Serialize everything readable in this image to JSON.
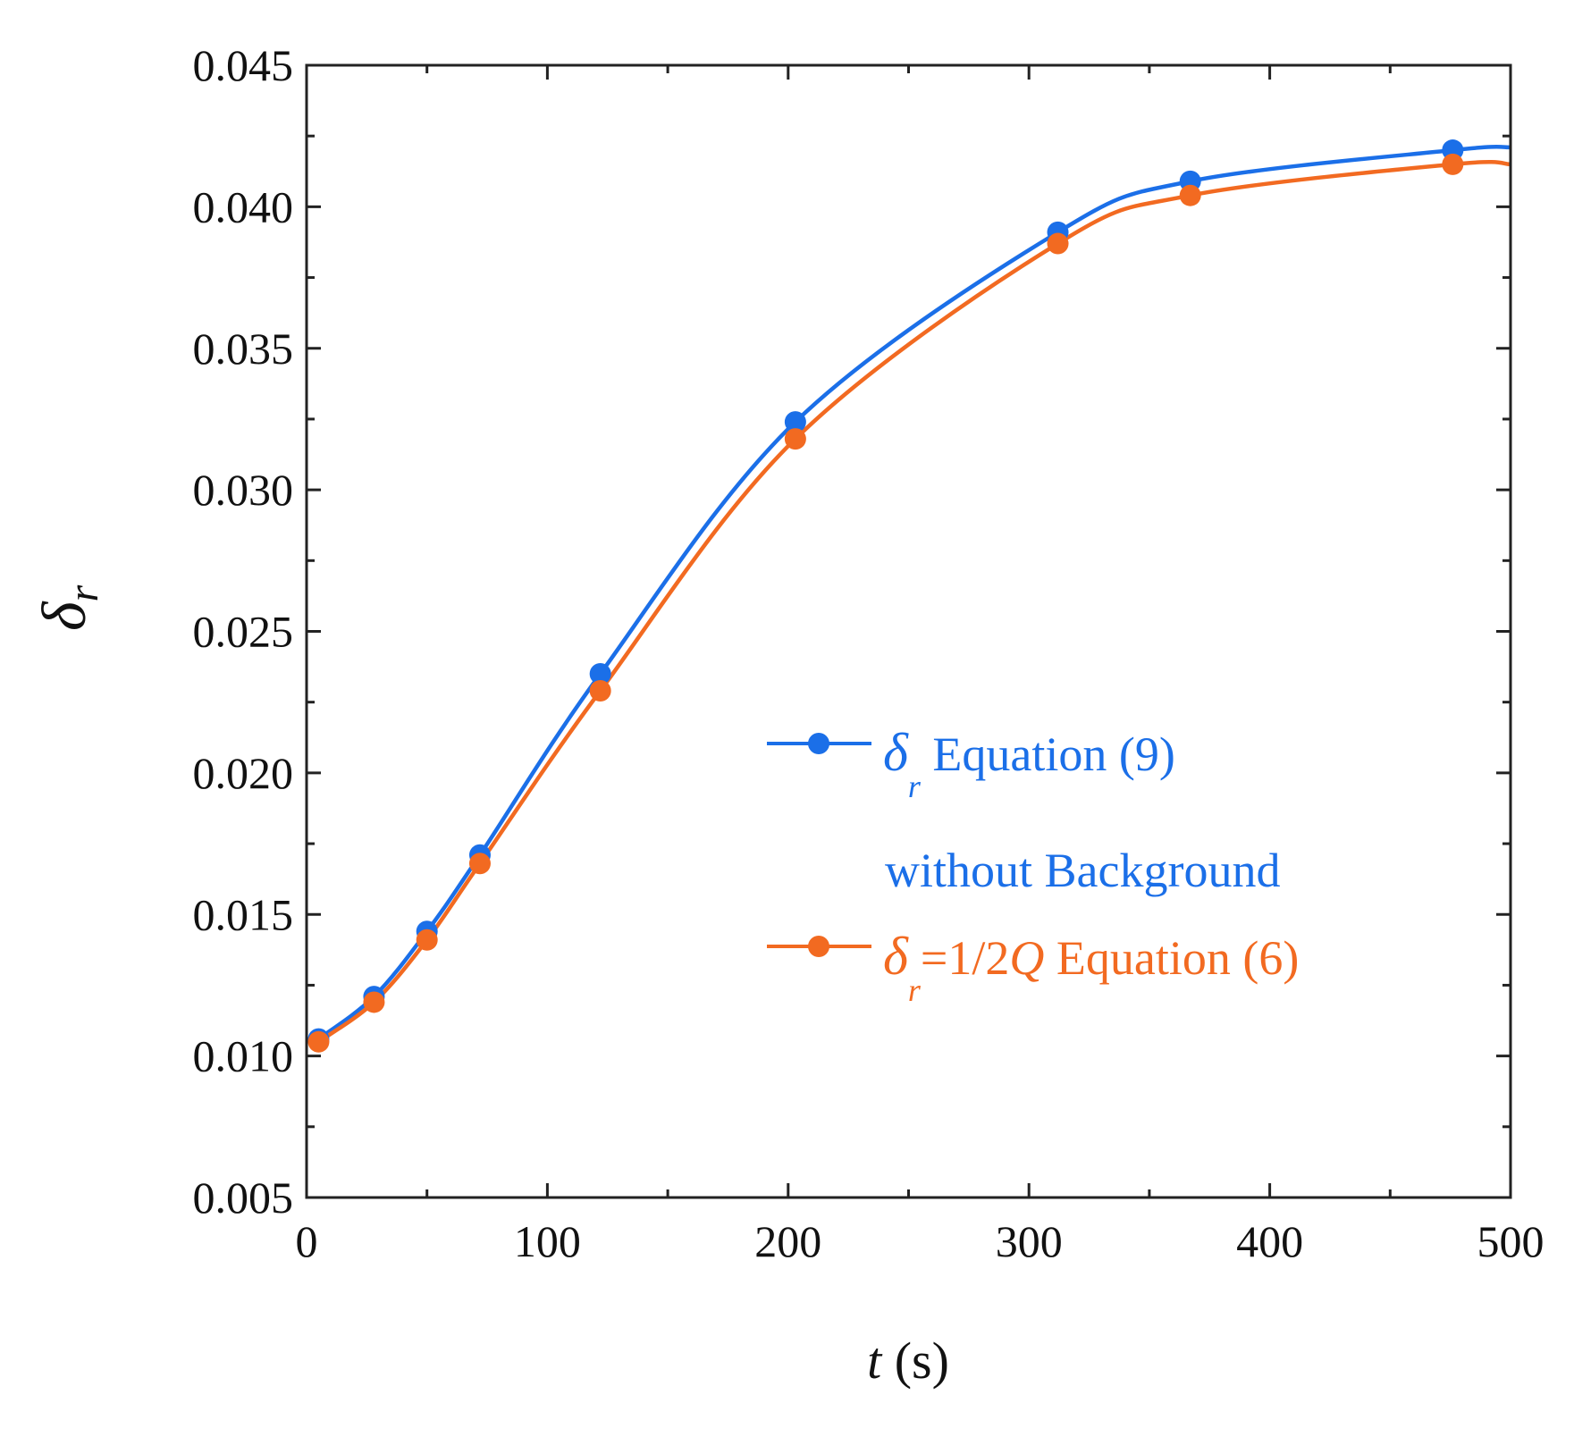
{
  "chart_data": {
    "type": "line",
    "title": "",
    "xlabel": {
      "var": "t",
      "unit": " (s)"
    },
    "ylabel": {
      "symbol": "δ",
      "sub": "r"
    },
    "xlim": [
      0,
      500
    ],
    "ylim": [
      0.005,
      0.045
    ],
    "xticks": [
      0,
      100,
      200,
      300,
      400,
      500
    ],
    "xtick_labels": [
      "0",
      "100",
      "200",
      "300",
      "400",
      "500"
    ],
    "yticks": [
      0.005,
      0.01,
      0.015,
      0.02,
      0.025,
      0.03,
      0.035,
      0.04,
      0.045
    ],
    "ytick_labels": [
      "0.005",
      "0.010",
      "0.015",
      "0.020",
      "0.025",
      "0.030",
      "0.035",
      "0.040",
      "0.045"
    ],
    "grid": false,
    "legend_position": "center-right",
    "series": [
      {
        "name": "δr Equation (9) without Background",
        "color": "#1b6fe8",
        "legend": {
          "symbol": "δ",
          "sub": "r",
          "rest": " Equation (9)",
          "line2": "without Background"
        },
        "points": [
          [
            5,
            0.0106
          ],
          [
            28,
            0.0121
          ],
          [
            50,
            0.0144
          ],
          [
            72,
            0.0171
          ],
          [
            122,
            0.0235
          ],
          [
            203,
            0.0324
          ],
          [
            312,
            0.0391
          ],
          [
            367,
            0.0409
          ],
          [
            476,
            0.042
          ]
        ],
        "curve_end": [
          500,
          0.0421
        ]
      },
      {
        "name": "δr=1/2Q Equation (6)",
        "color": "#f26a21",
        "legend": {
          "symbol": "δ",
          "sub": "r",
          "eq": "=1/2",
          "q": "Q",
          "rest": " Equation (6)"
        },
        "points": [
          [
            5,
            0.0105
          ],
          [
            28,
            0.0119
          ],
          [
            50,
            0.0141
          ],
          [
            72,
            0.0168
          ],
          [
            122,
            0.0229
          ],
          [
            203,
            0.0318
          ],
          [
            312,
            0.0387
          ],
          [
            367,
            0.0404
          ],
          [
            476,
            0.0415
          ]
        ],
        "curve_end": [
          500,
          0.0415
        ]
      }
    ]
  }
}
